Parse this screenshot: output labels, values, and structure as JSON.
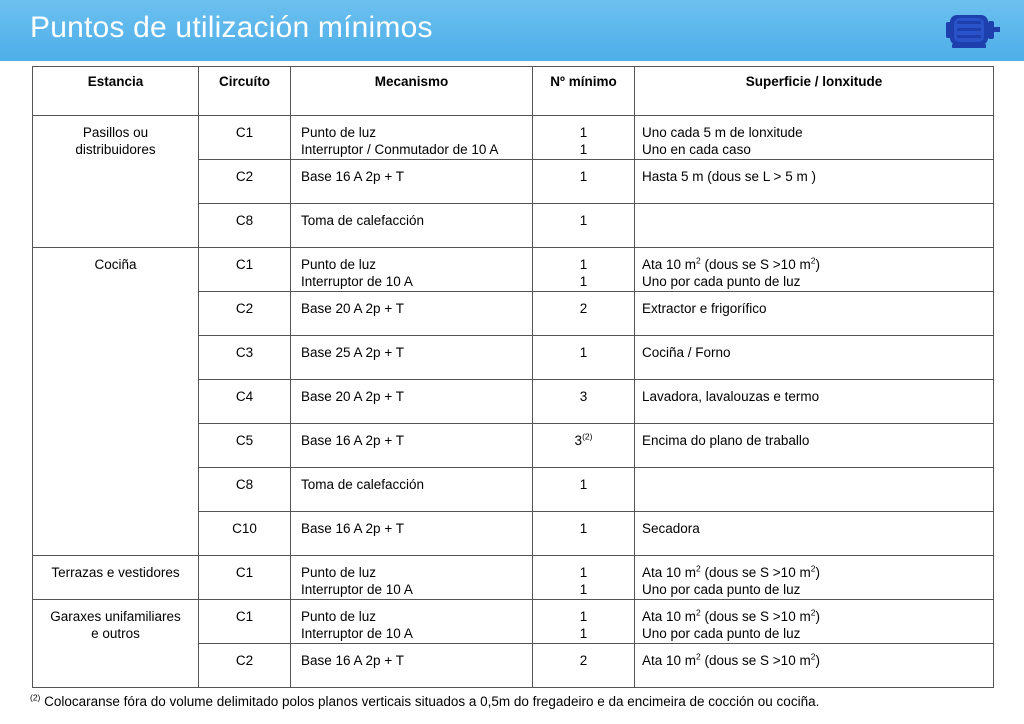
{
  "header": {
    "title": "Puntos de utilización mínimos",
    "logo_icon": "electric-motor-icon",
    "bg_color": "#56b4ea"
  },
  "table": {
    "columns": [
      "Estancia",
      "Circuíto",
      "Mecanismo",
      "Nº mínimo",
      "Superficie / lonxitude"
    ],
    "groups": [
      {
        "estancia": [
          "Pasillos ou",
          "distribuidores"
        ],
        "rows": [
          {
            "circuito": "C1",
            "mecanismo": [
              "Punto de luz",
              "Interruptor / Conmutador de 10 A"
            ],
            "minimo": [
              "1",
              "1"
            ],
            "superficie": [
              "Uno cada 5 m de lonxitude",
              "Uno en cada caso"
            ]
          },
          {
            "circuito": "C2",
            "mecanismo": [
              "Base 16 A 2p + T"
            ],
            "minimo": [
              "1"
            ],
            "superficie": [
              "Hasta 5 m (dous se L > 5 m )"
            ]
          },
          {
            "circuito": "C8",
            "mecanismo": [
              "Toma de calefacción"
            ],
            "minimo": [
              "1"
            ],
            "superficie": []
          }
        ]
      },
      {
        "estancia": [
          "Cociña"
        ],
        "rows": [
          {
            "circuito": "C1",
            "mecanismo": [
              "Punto de luz",
              "Interruptor de 10 A"
            ],
            "minimo": [
              "1",
              "1"
            ],
            "superficie": [
              "Ata 10 m² (dous se S >10 m²)",
              "Uno por cada punto de luz"
            ]
          },
          {
            "circuito": "C2",
            "mecanismo": [
              "Base 20 A 2p + T"
            ],
            "minimo": [
              "2"
            ],
            "superficie": [
              "Extractor e frigorífico"
            ]
          },
          {
            "circuito": "C3",
            "mecanismo": [
              "Base 25 A 2p + T"
            ],
            "minimo": [
              "1"
            ],
            "superficie": [
              "Cociña / Forno"
            ]
          },
          {
            "circuito": "C4",
            "mecanismo": [
              "Base 20 A 2p + T"
            ],
            "minimo": [
              "3"
            ],
            "superficie": [
              "Lavadora, lavalouzas e termo"
            ]
          },
          {
            "circuito": "C5",
            "mecanismo": [
              "Base 16 A 2p + T"
            ],
            "minimo": [
              "3"
            ],
            "minimo_note": "(2)",
            "superficie": [
              "Encima do plano de traballo"
            ]
          },
          {
            "circuito": "C8",
            "mecanismo": [
              "Toma de calefacción"
            ],
            "minimo": [
              "1"
            ],
            "superficie": []
          },
          {
            "circuito": "C10",
            "mecanismo": [
              "Base 16 A 2p + T"
            ],
            "minimo": [
              "1"
            ],
            "superficie": [
              "Secadora"
            ]
          }
        ]
      },
      {
        "estancia": [
          "Terrazas e vestidores"
        ],
        "rows": [
          {
            "circuito": "C1",
            "mecanismo": [
              "Punto de luz",
              "Interruptor de 10 A"
            ],
            "minimo": [
              "1",
              "1"
            ],
            "superficie": [
              "Ata 10 m² (dous se S >10 m²)",
              "Uno por cada punto de luz"
            ]
          }
        ]
      },
      {
        "estancia": [
          "Garaxes unifamiliares",
          "e outros"
        ],
        "rows": [
          {
            "circuito": "C1",
            "mecanismo": [
              "Punto de luz",
              "Interruptor de 10 A"
            ],
            "minimo": [
              "1",
              "1"
            ],
            "superficie": [
              "Ata 10 m² (dous se S >10 m²)",
              "Uno por cada punto de luz"
            ]
          },
          {
            "circuito": "C2",
            "mecanismo": [
              "Base 16 A 2p + T"
            ],
            "minimo": [
              "2"
            ],
            "superficie": [
              "Ata 10 m² (dous se S >10 m²)"
            ]
          }
        ]
      }
    ]
  },
  "footnote": {
    "marker": "(2)",
    "text": " Colocaranse fóra do volume delimitado polos planos verticais situados a 0,5m do fregadeiro e da encimeira de cocción ou cociña."
  }
}
